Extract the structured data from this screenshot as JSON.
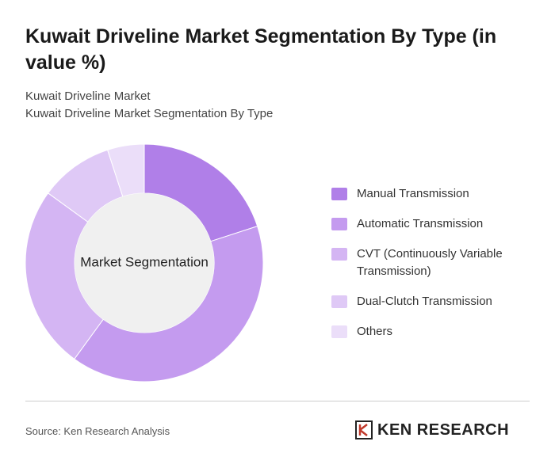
{
  "chart_data": {
    "type": "pie",
    "title": "Kuwait Driveline Market Segmentation By Type (in value %)",
    "subtitle": "Kuwait Driveline Market",
    "subtitle2": "Kuwait Driveline Market Segmentation By Type",
    "center_label": "Market Segmentation",
    "categories": [
      "Manual Transmission",
      "Automatic Transmission",
      "CVT (Continuously Variable Transmission)",
      "Dual-Clutch Transmission",
      "Others"
    ],
    "values": [
      20,
      40,
      25,
      10,
      5
    ],
    "colors": [
      "#b07fe8",
      "#c49bef",
      "#d4b5f3",
      "#dfc9f6",
      "#ebdef9"
    ],
    "source": "Source: Ken Research Analysis",
    "logo": "KEN RESEARCH"
  }
}
